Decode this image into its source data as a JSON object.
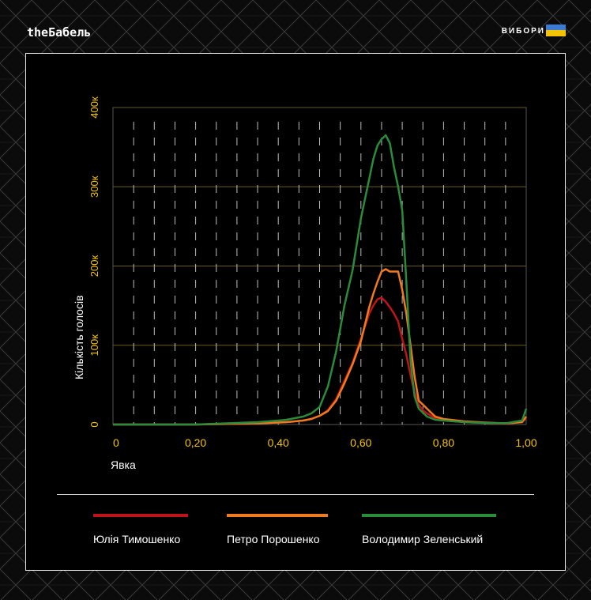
{
  "header": {
    "brand": "theБабель",
    "section": "ВИБОРИ",
    "flag_colors": [
      "#3a7bd5",
      "#f5c400"
    ]
  },
  "chart_data": {
    "type": "line",
    "title": "",
    "xlabel": "Явка",
    "ylabel": "Кількість голосів",
    "xlim": [
      0,
      1.0
    ],
    "ylim": [
      0,
      400000
    ],
    "x_ticks": [
      "0",
      "0,20",
      "0,40",
      "0,60",
      "0,80",
      "1,00"
    ],
    "y_ticks": [
      "0",
      "100к",
      "200к",
      "300к",
      "400к"
    ],
    "grid": "horizontal solid, vertical dashed",
    "legend_position": "bottom",
    "tick_color": "#f5c400",
    "x": [
      0.0,
      0.05,
      0.1,
      0.15,
      0.2,
      0.25,
      0.3,
      0.35,
      0.4,
      0.42,
      0.44,
      0.46,
      0.48,
      0.5,
      0.52,
      0.54,
      0.56,
      0.58,
      0.6,
      0.62,
      0.63,
      0.64,
      0.65,
      0.66,
      0.67,
      0.68,
      0.69,
      0.7,
      0.71,
      0.72,
      0.73,
      0.74,
      0.75,
      0.76,
      0.78,
      0.8,
      0.85,
      0.9,
      0.95,
      0.99,
      1.0
    ],
    "series": [
      {
        "name": "Юлія Тимошенко",
        "color": "#c0141b",
        "values": [
          0,
          0,
          0,
          0,
          0,
          500,
          1000,
          1500,
          2500,
          3000,
          4000,
          5000,
          7000,
          11000,
          18000,
          32000,
          55000,
          78000,
          108000,
          140000,
          150000,
          158000,
          160000,
          155000,
          148000,
          140000,
          130000,
          108000,
          88000,
          62000,
          40000,
          25000,
          18000,
          14000,
          8000,
          6000,
          3000,
          2000,
          1000,
          3000,
          8000
        ]
      },
      {
        "name": "Петро Порошенко",
        "color": "#f07a1e",
        "values": [
          0,
          0,
          0,
          0,
          0,
          500,
          1000,
          1500,
          2500,
          3000,
          4000,
          5000,
          7000,
          11000,
          17000,
          30000,
          52000,
          76000,
          105000,
          148000,
          165000,
          180000,
          193000,
          196000,
          193000,
          193000,
          193000,
          170000,
          140000,
          100000,
          60000,
          30000,
          25000,
          20000,
          10000,
          7000,
          4000,
          2500,
          1500,
          3000,
          10000
        ]
      },
      {
        "name": "Володимир Зеленський",
        "color": "#2a8c3a",
        "values": [
          0,
          0,
          0,
          0,
          0,
          1000,
          2000,
          3000,
          5000,
          6000,
          8000,
          10000,
          14000,
          22000,
          48000,
          92000,
          150000,
          195000,
          260000,
          310000,
          335000,
          352000,
          360000,
          365000,
          355000,
          325000,
          300000,
          270000,
          180000,
          80000,
          35000,
          20000,
          15000,
          10000,
          6000,
          5000,
          3000,
          2000,
          1500,
          5000,
          20000
        ]
      }
    ]
  }
}
